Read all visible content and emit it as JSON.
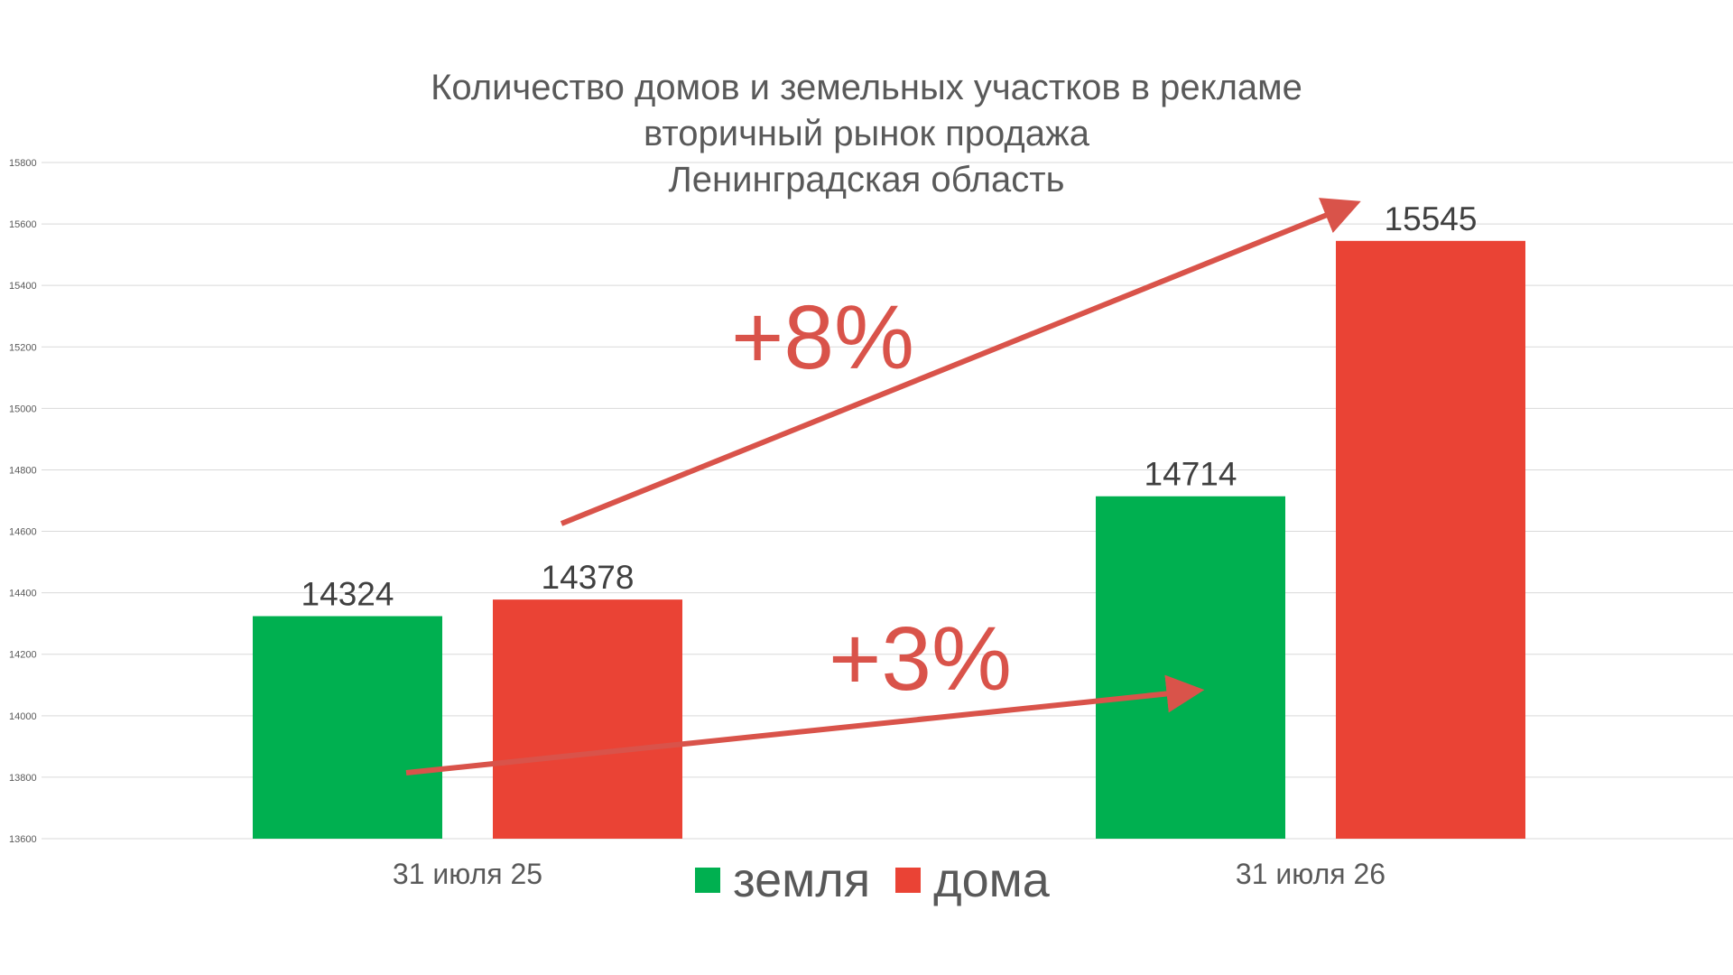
{
  "chart_data": {
    "type": "bar",
    "title": [
      "Количество домов и земельных участков в рекламе",
      "вторичный рынок продажа",
      "Ленинградская область"
    ],
    "categories": [
      "31 июля 25",
      "31 июля 26"
    ],
    "series": [
      {
        "name": "земля",
        "color": "#00B050",
        "values": [
          14324,
          14714
        ]
      },
      {
        "name": "дома",
        "color": "#EA4335",
        "values": [
          14378,
          15545
        ]
      }
    ],
    "ylim": [
      13600,
      15800
    ],
    "yticks": [
      13600,
      13800,
      14000,
      14200,
      14400,
      14600,
      14800,
      15000,
      15200,
      15400,
      15600,
      15800
    ],
    "grid": true,
    "legend_position": "bottom",
    "annotations": [
      {
        "text": "+8%",
        "color": "#D9534A"
      },
      {
        "text": "+3%",
        "color": "#D9534A"
      }
    ]
  }
}
